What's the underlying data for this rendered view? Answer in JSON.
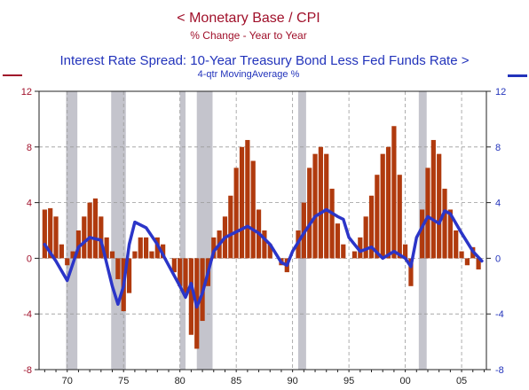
{
  "chart_data": {
    "type": "bar+line",
    "title_lines": [
      "<  Monetary Base / CPI",
      "% Change - Year to Year",
      "Interest Rate Spread: 10-Year Treasury Bond Less Fed Funds Rate  >",
      "4-qtr MovingAverage      %"
    ],
    "left_axis": {
      "ylim": [
        -8,
        12
      ],
      "ticks": [
        "12",
        "8",
        "4",
        "0",
        "-4",
        "-8"
      ],
      "color": "#a0102a"
    },
    "right_axis": {
      "ylim": [
        -8,
        12
      ],
      "ticks": [
        "12",
        "8",
        "4",
        "0",
        "-4",
        "-8"
      ],
      "color": "#2233bb"
    },
    "x_axis": {
      "xlim": [
        1967.5,
        2007.2
      ],
      "tick_labels": [
        "70",
        "75",
        "80",
        "85",
        "90",
        "95",
        "00",
        "05"
      ]
    },
    "grid": "dashed",
    "recessions": [
      [
        1969.9,
        1970.9
      ],
      [
        1973.9,
        1975.2
      ],
      [
        1980.0,
        1980.5
      ],
      [
        1981.5,
        1982.9
      ],
      [
        1990.5,
        1991.2
      ],
      [
        2001.2,
        2001.9
      ]
    ],
    "series": [
      {
        "name": "Monetary Base / CPI",
        "type": "bar",
        "color": "#b03a0e",
        "x": [
          1968.0,
          1968.5,
          1969.0,
          1969.5,
          1970.0,
          1970.5,
          1971.0,
          1971.5,
          1972.0,
          1972.5,
          1973.0,
          1973.5,
          1974.0,
          1974.5,
          1975.0,
          1975.5,
          1976.0,
          1976.5,
          1977.0,
          1977.5,
          1978.0,
          1978.5,
          1979.0,
          1979.5,
          1980.0,
          1980.5,
          1981.0,
          1981.5,
          1982.0,
          1982.5,
          1983.0,
          1983.5,
          1984.0,
          1984.5,
          1985.0,
          1985.5,
          1986.0,
          1986.5,
          1987.0,
          1987.5,
          1988.0,
          1988.5,
          1989.0,
          1989.5,
          1990.0,
          1990.5,
          1991.0,
          1991.5,
          1992.0,
          1992.5,
          1993.0,
          1993.5,
          1994.0,
          1994.5,
          1995.0,
          1995.5,
          1996.0,
          1996.5,
          1997.0,
          1997.5,
          1998.0,
          1998.5,
          1999.0,
          1999.5,
          2000.0,
          2000.5,
          2001.0,
          2001.5,
          2002.0,
          2002.5,
          2003.0,
          2003.5,
          2004.0,
          2004.5,
          2005.0,
          2005.5,
          2006.0,
          2006.5
        ],
        "values": [
          3.5,
          3.6,
          3.0,
          1.0,
          -0.5,
          0.5,
          2.0,
          3.0,
          4.0,
          4.3,
          3.0,
          1.5,
          0.5,
          -1.5,
          -3.8,
          -2.5,
          0.5,
          1.5,
          1.5,
          0.5,
          1.5,
          1.0,
          0.0,
          -1.0,
          -2.0,
          -2.5,
          -5.5,
          -6.5,
          -4.5,
          -2.0,
          1.5,
          2.0,
          3.0,
          4.5,
          6.5,
          8.0,
          8.5,
          7.0,
          3.5,
          2.0,
          1.0,
          0.0,
          -0.5,
          -1.0,
          0.0,
          2.0,
          4.0,
          6.5,
          7.5,
          8.0,
          7.5,
          5.0,
          2.5,
          1.0,
          0.0,
          0.5,
          1.5,
          3.0,
          4.5,
          6.0,
          7.5,
          8.0,
          9.5,
          6.0,
          1.0,
          -2.0,
          0.0,
          3.5,
          6.5,
          8.5,
          7.5,
          5.0,
          3.5,
          2.0,
          0.5,
          -0.5,
          0.8,
          -0.8
        ]
      },
      {
        "name": "Interest Rate Spread: 10-Year Treasury Bond Less Fed Funds Rate",
        "type": "line",
        "color": "#2b35c8",
        "x": [
          1968.0,
          1969.0,
          1970.0,
          1971.0,
          1972.0,
          1973.0,
          1974.0,
          1974.5,
          1975.0,
          1975.5,
          1976.0,
          1977.0,
          1978.0,
          1979.0,
          1980.0,
          1980.5,
          1981.0,
          1981.5,
          1982.0,
          1983.0,
          1984.0,
          1985.0,
          1986.0,
          1987.0,
          1988.0,
          1989.0,
          1989.5,
          1990.0,
          1991.0,
          1992.0,
          1993.0,
          1994.0,
          1994.5,
          1995.0,
          1996.0,
          1997.0,
          1998.0,
          1999.0,
          2000.0,
          2000.5,
          2001.0,
          2002.0,
          2003.0,
          2003.5,
          2004.0,
          2005.0,
          2006.0,
          2006.8
        ],
        "values": [
          1.0,
          -0.2,
          -1.6,
          0.8,
          1.5,
          1.3,
          -2.0,
          -3.3,
          -2.0,
          1.0,
          2.6,
          2.2,
          1.0,
          -0.5,
          -2.0,
          -2.8,
          -1.8,
          -3.5,
          -2.5,
          0.5,
          1.5,
          1.9,
          2.3,
          1.8,
          1.0,
          -0.3,
          -0.5,
          0.5,
          1.8,
          3.0,
          3.5,
          3.0,
          2.8,
          1.5,
          0.5,
          0.8,
          0.0,
          0.5,
          0.0,
          -0.6,
          1.5,
          3.0,
          2.5,
          3.4,
          3.2,
          1.8,
          0.5,
          -0.2
        ]
      }
    ]
  }
}
